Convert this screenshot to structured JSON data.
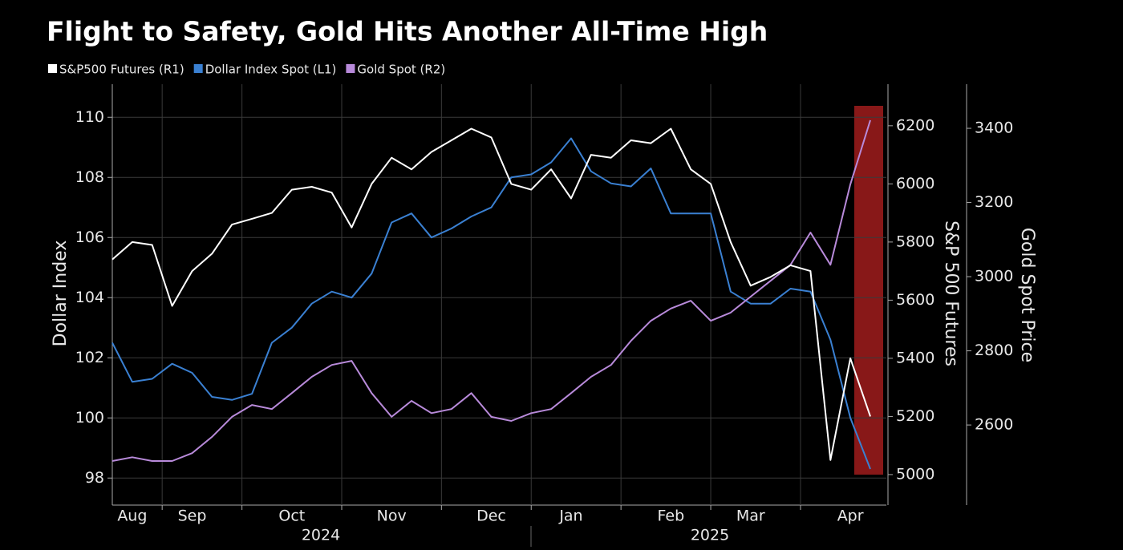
{
  "chart_data": {
    "type": "line",
    "title": "Flight to Safety, Gold Hits Another All-Time High",
    "categories": [
      null,
      "Aug",
      null,
      null,
      "Sep",
      null,
      null,
      null,
      null,
      "Oct",
      null,
      null,
      null,
      null,
      "Nov",
      null,
      null,
      null,
      null,
      "Dec",
      null,
      null,
      null,
      "Jan",
      null,
      null,
      null,
      null,
      "Feb",
      null,
      null,
      null,
      "Mar",
      null,
      null,
      null,
      null,
      "Apr",
      null
    ],
    "years": [
      "2024",
      "2025"
    ],
    "series": [
      {
        "name": "S&P500 Futures (R1)",
        "color": "#ffffff",
        "axis": "y2",
        "values": [
          5740,
          5800,
          5790,
          5580,
          5700,
          5760,
          5860,
          5880,
          5900,
          5980,
          5990,
          5970,
          5850,
          6000,
          6090,
          6050,
          6110,
          6150,
          6190,
          6160,
          6000,
          5980,
          6050,
          5950,
          6100,
          6090,
          6150,
          6140,
          6190,
          6050,
          6000,
          5800,
          5650,
          5680,
          5720,
          5700,
          5050,
          5400,
          5200
        ]
      },
      {
        "name": "Dollar Index Spot (L1)",
        "color": "#3a80d2",
        "axis": "y",
        "values": [
          102.5,
          101.2,
          101.3,
          101.8,
          101.5,
          100.7,
          100.6,
          100.8,
          102.5,
          103.0,
          103.8,
          104.2,
          104.0,
          104.8,
          106.5,
          106.8,
          106.0,
          106.3,
          106.7,
          107.0,
          108.0,
          108.1,
          108.5,
          109.3,
          108.2,
          107.8,
          107.7,
          108.3,
          106.8,
          106.8,
          106.8,
          104.2,
          103.8,
          103.8,
          104.3,
          104.2,
          102.6,
          100.0,
          98.3
        ]
      },
      {
        "name": "Gold Spot (R2)",
        "color": "#b88ada",
        "axis": "y3",
        "values": [
          2503,
          2513,
          2503,
          2503,
          2524,
          2568,
          2622,
          2654,
          2643,
          2686,
          2730,
          2762,
          2773,
          2686,
          2622,
          2665,
          2632,
          2643,
          2686,
          2622,
          2611,
          2632,
          2643,
          2686,
          2730,
          2762,
          2827,
          2881,
          2914,
          2935,
          2881,
          2903,
          2946,
          2989,
          3032,
          3119,
          3032,
          3249,
          3422
        ]
      }
    ],
    "ylabel": "Dollar Index",
    "ylim": [
      97.1,
      111.1
    ],
    "yticks": [
      98,
      100,
      102,
      104,
      106,
      108,
      110
    ],
    "y2label": "S&P 500 Futures",
    "y2lim": [
      4895,
      6343
    ],
    "y2ticks": [
      5000,
      5200,
      5400,
      5600,
      5800,
      6000,
      6200
    ],
    "y3label": "Gold Spot Price",
    "y3lim": [
      2384,
      3519
    ],
    "y3ticks": [
      2600,
      2800,
      3000,
      3200,
      3400
    ],
    "grid": true
  }
}
